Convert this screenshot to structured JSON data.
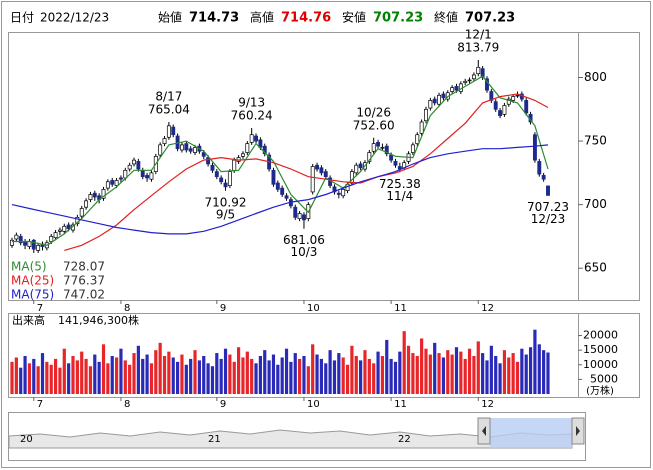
{
  "header": {
    "date_label": "日付",
    "date": "2022/12/23",
    "fields": [
      {
        "label": "始値",
        "color": "#000000"
      },
      {
        "label": "高値",
        "color": "#e00000"
      },
      {
        "label": "安値",
        "color": "#008000"
      },
      {
        "label": "終値",
        "color": "#000000"
      }
    ]
  },
  "chart_data": {
    "type": "candlestick",
    "ylim": [
      625,
      835
    ],
    "yticks": [
      650,
      700,
      750,
      800
    ],
    "xticks": [
      {
        "value": 5,
        "label": "7"
      },
      {
        "value": 25,
        "label": "8"
      },
      {
        "value": 47,
        "label": "9"
      },
      {
        "value": 67,
        "label": "10"
      },
      {
        "value": 87,
        "label": "11"
      },
      {
        "value": 107,
        "label": "12"
      }
    ],
    "up_color": "#ffffff",
    "down_color": "#1c2a8c",
    "candles": [
      [
        668,
        674,
        666,
        672
      ],
      [
        673,
        678,
        671,
        676
      ],
      [
        675,
        677,
        668,
        670
      ],
      [
        671,
        673,
        665,
        668
      ],
      [
        667,
        673,
        665,
        671
      ],
      [
        672,
        673,
        662,
        665
      ],
      [
        664,
        670,
        662,
        668
      ],
      [
        669,
        671,
        664,
        667
      ],
      [
        666,
        672,
        664,
        670
      ],
      [
        671,
        677,
        669,
        675
      ],
      [
        674,
        680,
        672,
        678
      ],
      [
        679,
        682,
        676,
        680
      ],
      [
        679,
        685,
        677,
        683
      ],
      [
        684,
        686,
        679,
        681
      ],
      [
        680,
        686,
        678,
        684
      ],
      [
        685,
        692,
        683,
        690
      ],
      [
        691,
        699,
        689,
        697
      ],
      [
        698,
        705,
        696,
        703
      ],
      [
        704,
        710,
        702,
        708
      ],
      [
        709,
        711,
        703,
        706
      ],
      [
        707,
        709,
        701,
        704
      ],
      [
        705,
        714,
        703,
        712
      ],
      [
        713,
        720,
        711,
        718
      ],
      [
        719,
        721,
        714,
        716
      ],
      [
        715,
        721,
        713,
        719
      ],
      [
        721,
        723,
        717,
        720
      ],
      [
        721,
        729,
        719,
        727
      ],
      [
        728,
        733,
        726,
        731
      ],
      [
        732,
        737,
        730,
        735
      ],
      [
        734,
        736,
        726,
        728
      ],
      [
        727,
        729,
        720,
        722
      ],
      [
        723,
        725,
        718,
        721
      ],
      [
        720,
        727,
        718,
        725
      ],
      [
        726,
        740,
        724,
        738
      ],
      [
        739,
        749,
        737,
        747
      ],
      [
        748,
        754,
        746,
        752
      ],
      [
        753,
        765.04,
        751,
        762
      ],
      [
        761,
        763,
        753,
        755
      ],
      [
        754,
        756,
        742,
        744
      ],
      [
        743,
        749,
        741,
        747
      ],
      [
        748,
        750,
        741,
        743
      ],
      [
        744,
        746,
        740,
        742
      ],
      [
        741,
        747,
        739,
        745
      ],
      [
        746,
        748,
        740,
        742
      ],
      [
        741,
        743,
        736,
        738
      ],
      [
        737,
        739,
        730,
        732
      ],
      [
        731,
        733,
        725,
        727
      ],
      [
        726,
        728,
        720,
        722
      ],
      [
        721,
        723,
        716,
        718
      ],
      [
        717,
        720,
        710.92,
        714
      ],
      [
        715,
        728,
        713,
        726
      ],
      [
        727,
        737,
        725,
        735
      ],
      [
        734,
        739,
        732,
        737
      ],
      [
        738,
        742,
        736,
        740
      ],
      [
        741,
        750,
        739,
        748
      ],
      [
        749,
        760.24,
        747,
        755
      ],
      [
        754,
        756,
        748,
        750
      ],
      [
        751,
        753,
        743,
        745
      ],
      [
        746,
        748,
        738,
        740
      ],
      [
        739,
        741,
        726,
        728
      ],
      [
        727,
        729,
        714,
        716
      ],
      [
        717,
        719,
        710,
        712
      ],
      [
        713,
        715,
        706,
        708
      ],
      [
        707,
        709,
        703,
        705
      ],
      [
        704,
        706,
        697,
        699
      ],
      [
        698,
        700,
        688,
        690
      ],
      [
        689,
        695,
        687,
        693
      ],
      [
        692,
        694,
        681.06,
        688
      ],
      [
        689,
        702,
        687,
        700
      ],
      [
        710,
        732,
        708,
        730
      ],
      [
        731,
        733,
        726,
        728
      ],
      [
        729,
        731,
        723,
        725
      ],
      [
        726,
        728,
        720,
        722
      ],
      [
        721,
        723,
        713,
        715
      ],
      [
        714,
        716,
        708,
        710
      ],
      [
        709,
        711,
        705,
        708
      ],
      [
        707,
        714,
        705,
        712
      ],
      [
        711,
        718,
        709,
        716
      ],
      [
        717,
        728,
        715,
        726
      ],
      [
        725,
        733,
        723,
        731
      ],
      [
        732,
        734,
        727,
        729
      ],
      [
        728,
        735,
        726,
        733
      ],
      [
        734,
        743,
        732,
        741
      ],
      [
        742,
        752.6,
        740,
        748
      ],
      [
        749,
        751,
        744,
        746
      ],
      [
        745,
        748,
        743,
        745
      ],
      [
        746,
        748,
        738,
        740
      ],
      [
        739,
        741,
        733,
        735
      ],
      [
        734,
        736,
        729,
        731
      ],
      [
        730,
        733,
        725.38,
        728
      ],
      [
        729,
        735,
        727,
        733
      ],
      [
        734,
        742,
        732,
        740
      ],
      [
        741,
        749,
        739,
        747
      ],
      [
        748,
        757,
        746,
        755
      ],
      [
        756,
        767,
        754,
        765
      ],
      [
        766,
        777,
        764,
        775
      ],
      [
        776,
        784,
        774,
        782
      ],
      [
        783,
        785,
        778,
        780
      ],
      [
        779,
        788,
        777,
        786
      ],
      [
        787,
        789,
        782,
        784
      ],
      [
        783,
        790,
        781,
        788
      ],
      [
        789,
        794,
        787,
        792
      ],
      [
        793,
        795,
        788,
        790
      ],
      [
        789,
        797,
        787,
        795
      ],
      [
        796,
        799,
        794,
        797
      ],
      [
        798,
        800,
        795,
        798
      ],
      [
        799,
        804,
        797,
        802
      ],
      [
        803,
        813.79,
        801,
        808
      ],
      [
        807,
        809,
        798,
        800
      ],
      [
        799,
        801,
        788,
        790
      ],
      [
        789,
        791,
        780,
        782
      ],
      [
        781,
        783,
        773,
        775
      ],
      [
        774,
        776,
        768,
        770
      ],
      [
        771,
        780,
        769,
        778
      ],
      [
        779,
        785,
        777,
        783
      ],
      [
        782,
        787,
        780,
        785
      ],
      [
        786,
        789,
        784,
        786
      ],
      [
        787,
        789,
        781,
        783
      ],
      [
        782,
        784,
        770,
        772
      ],
      [
        771,
        773,
        763,
        765
      ],
      [
        755,
        757,
        733,
        735
      ],
      [
        734,
        736,
        722,
        724
      ],
      [
        723,
        725,
        718,
        720
      ],
      [
        714.73,
        714.76,
        707.23,
        707.23
      ]
    ],
    "annotations": [
      {
        "date": "8/17",
        "label": "765.04"
      },
      {
        "date": "9/5",
        "label": "710.92"
      },
      {
        "date": "9/13",
        "label": "760.24"
      },
      {
        "date": "10/3",
        "label": "681.06"
      },
      {
        "date": "10/26",
        "label": "752.60"
      },
      {
        "date": "11/4",
        "label": "725.38"
      },
      {
        "date": "12/1",
        "label": "813.79"
      },
      {
        "date": "12/23",
        "label": "707.23"
      }
    ],
    "ma_x": [
      0,
      4,
      8,
      12,
      16,
      20,
      24,
      28,
      32,
      36,
      40,
      44,
      48,
      52,
      56,
      60,
      64,
      68,
      72,
      76,
      80,
      84,
      88,
      92,
      96,
      100,
      104,
      108,
      112,
      116,
      120,
      123
    ],
    "ma": [
      {
        "name": "MA(5)",
        "color": "#2e8b2e",
        "values": [
          671,
          671,
          668,
          677,
          689,
          704,
          714,
          727,
          727,
          747,
          750,
          742,
          726,
          727,
          748,
          734,
          708,
          694,
          721,
          713,
          726,
          744,
          738,
          737,
          770,
          785,
          793,
          801,
          784,
          780,
          762,
          728.07
        ]
      },
      {
        "name": "MA(25)",
        "color": "#e02020",
        "values": [
          null,
          null,
          null,
          664,
          668,
          675,
          684,
          696,
          707,
          718,
          728,
          735,
          737,
          735,
          736,
          733,
          728,
          722,
          720,
          718,
          717,
          722,
          725,
          730,
          740,
          752,
          764,
          780,
          785,
          787,
          782,
          776.37
        ]
      },
      {
        "name": "MA(75)",
        "color": "#2020d0",
        "values": [
          700,
          697,
          694,
          691,
          688,
          685,
          682,
          680,
          678,
          677,
          677,
          679,
          683,
          688,
          693,
          698,
          702,
          704,
          708,
          713,
          718,
          722,
          726,
          732,
          737,
          740,
          742,
          744,
          744,
          745,
          746,
          747.02
        ]
      }
    ],
    "volume": {
      "title": "出来高",
      "caption": "141,946,300株",
      "unit": "(万株)",
      "ylim": [
        0,
        26000
      ],
      "yticks": [
        5000,
        10000,
        15000,
        20000
      ],
      "up_color": "#e8262a",
      "down_color": "#2a2ab8",
      "values": [
        11000,
        12500,
        9000,
        13000,
        10500,
        12000,
        9500,
        14000,
        11000,
        10000,
        12000,
        9000,
        15500,
        10500,
        13000,
        11500,
        14500,
        12000,
        9500,
        13500,
        11000,
        17000,
        10500,
        13000,
        12500,
        15500,
        11500,
        10000,
        14000,
        16500,
        12000,
        13500,
        10500,
        15000,
        17500,
        13000,
        14500,
        12500,
        11000,
        13500,
        10000,
        12000,
        15000,
        11500,
        13000,
        10500,
        9500,
        14000,
        12000,
        15500,
        13500,
        11000,
        16000,
        12500,
        14500,
        12000,
        10500,
        13000,
        15000,
        11500,
        13500,
        10000,
        12500,
        15500,
        11000,
        14000,
        12000,
        13000,
        9500,
        17000,
        13500,
        12000,
        10500,
        15000,
        11500,
        14000,
        12500,
        10000,
        16500,
        13000,
        11500,
        15000,
        12000,
        10500,
        14500,
        13000,
        18500,
        12000,
        11000,
        14500,
        21500,
        16500,
        14000,
        13000,
        19000,
        15500,
        13500,
        17500,
        14000,
        12500,
        15000,
        13500,
        16000,
        14500,
        12000,
        15500,
        13000,
        18000,
        14000,
        11500,
        16500,
        13000,
        10500,
        15000,
        12500,
        14000,
        11000,
        15500,
        13500,
        16000,
        22000,
        17000,
        15000,
        14194.63
      ]
    },
    "navigator": {
      "labels": [
        "20",
        "21",
        "22"
      ]
    }
  }
}
